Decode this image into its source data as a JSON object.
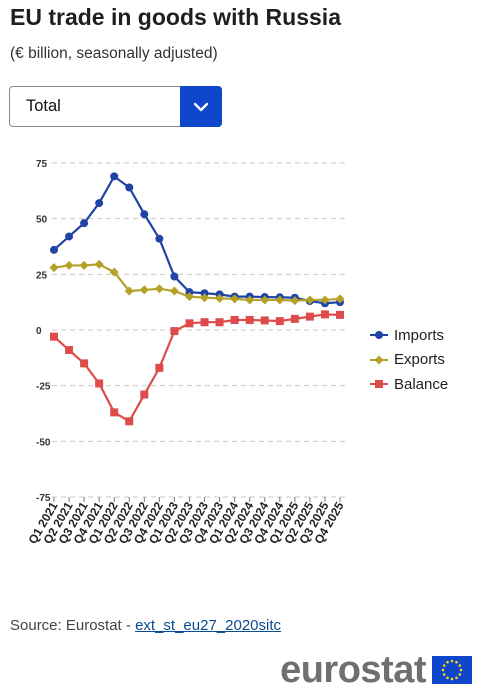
{
  "header": {
    "title": "EU trade in goods with Russia",
    "subtitle": "(€ billion, seasonally adjusted)"
  },
  "dropdown": {
    "selected": "Total",
    "icon": "chevron-down-icon"
  },
  "source": {
    "prefix": "Source: Eurostat - ",
    "link": "ext_st_eu27_2020sitc"
  },
  "logo": {
    "text": "eurostat"
  },
  "chart_data": {
    "type": "line",
    "categories": [
      "Q1 2021",
      "Q2 2021",
      "Q3 2021",
      "Q4 2021",
      "Q1 2022",
      "Q2 2022",
      "Q3 2022",
      "Q4 2022",
      "Q1 2023",
      "Q2 2023",
      "Q3 2023",
      "Q4 2023",
      "Q1 2024",
      "Q2 2024",
      "Q3 2024",
      "Q4 2024",
      "Q1 2025",
      "Q2 2025",
      "Q3 2025",
      "Q4 2025"
    ],
    "y_ticks": [
      "75",
      "50",
      "25",
      "0",
      "-25",
      "-50",
      "-75"
    ],
    "ylim": [
      -75,
      75
    ],
    "grid": true,
    "legend_position": "right",
    "series": [
      {
        "name": "Imports",
        "color": "#2044a5",
        "marker": "circle",
        "values": [
          36,
          42,
          48,
          57,
          69,
          64,
          52,
          41,
          24,
          17,
          16.5,
          16,
          15,
          15,
          14.8,
          14.7,
          14.5,
          13,
          12,
          12.5
        ]
      },
      {
        "name": "Exports",
        "color": "#b3a128",
        "marker": "diamond",
        "values": [
          28,
          29,
          29,
          29.5,
          26,
          17.5,
          18,
          18.5,
          17.5,
          15,
          14.5,
          14.2,
          14,
          13.5,
          13.5,
          13.5,
          13.2,
          13.5,
          13.5,
          14
        ]
      },
      {
        "name": "Balance",
        "color": "#de4b4b",
        "marker": "square",
        "values": [
          -3,
          -9,
          -15,
          -24,
          -37,
          -41,
          -29,
          -17,
          -0.5,
          3,
          3.5,
          3.5,
          4.5,
          4.5,
          4.3,
          4,
          5,
          6,
          7,
          6.8
        ]
      }
    ]
  }
}
